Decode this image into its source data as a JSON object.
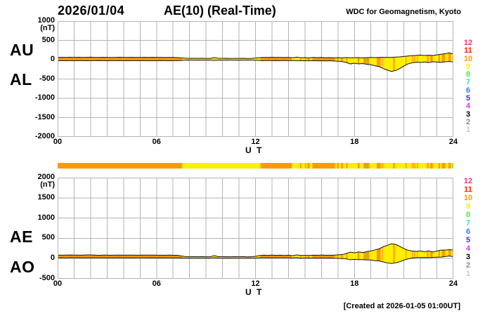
{
  "header": {
    "date": "2026/01/04",
    "title": "AE(10) (Real-Time)",
    "credit": "WDC for Geomagnetism, Kyoto"
  },
  "footer": {
    "created": "[Created at 2026-01-05 01:00UT]"
  },
  "colors": {
    "grid": "#b3b3b3",
    "outline": "#111111",
    "background": "#ffffff",
    "text": "#000000"
  },
  "station_colors": {
    "12": "#f2317e",
    "11": "#ff2000",
    "10": "#ff9900",
    "9": "#ffef00",
    "8": "#55e63c",
    "7": "#2ee6a8",
    "6": "#2e7ef0",
    "5": "#4a28e0",
    "4": "#dd33ee",
    "3": "#000000",
    "2": "#8c8c8c",
    "1": "#c8c8c8"
  },
  "legend_counts": [
    12,
    11,
    10,
    9,
    8,
    7,
    6,
    5,
    4,
    3,
    2,
    1
  ],
  "station_segments": [
    [
      0,
      7.55,
      10
    ],
    [
      7.55,
      12.3,
      9
    ],
    [
      12.3,
      14.2,
      10
    ],
    [
      14.2,
      14.7,
      9
    ],
    [
      14.7,
      14.78,
      10
    ],
    [
      14.78,
      15.0,
      9
    ],
    [
      15.0,
      15.08,
      10
    ],
    [
      15.08,
      15.15,
      9
    ],
    [
      15.15,
      15.28,
      10
    ],
    [
      15.28,
      15.45,
      9
    ],
    [
      15.45,
      16.75,
      10
    ],
    [
      16.75,
      16.82,
      10
    ],
    [
      16.82,
      16.95,
      9
    ],
    [
      16.95,
      17.05,
      10
    ],
    [
      17.05,
      17.18,
      9
    ],
    [
      17.18,
      17.3,
      10
    ],
    [
      17.3,
      17.5,
      9
    ],
    [
      17.5,
      17.58,
      10
    ],
    [
      17.58,
      18.2,
      9
    ],
    [
      18.2,
      18.3,
      10
    ],
    [
      18.3,
      18.55,
      9
    ],
    [
      18.55,
      18.65,
      10
    ],
    [
      18.65,
      18.72,
      8
    ],
    [
      18.72,
      18.9,
      10
    ],
    [
      18.9,
      19.35,
      9
    ],
    [
      19.35,
      19.6,
      10
    ],
    [
      19.6,
      19.68,
      9
    ],
    [
      19.68,
      19.73,
      10
    ],
    [
      19.73,
      20.35,
      9
    ],
    [
      20.35,
      20.45,
      10
    ],
    [
      20.45,
      21.1,
      9
    ],
    [
      21.1,
      21.16,
      10
    ],
    [
      21.16,
      21.5,
      9
    ],
    [
      21.5,
      21.56,
      10
    ],
    [
      21.56,
      21.62,
      9
    ],
    [
      21.62,
      21.68,
      10
    ],
    [
      21.68,
      21.8,
      9
    ],
    [
      21.8,
      21.86,
      10
    ],
    [
      21.86,
      22.4,
      9
    ],
    [
      22.4,
      22.5,
      10
    ],
    [
      22.5,
      22.6,
      9
    ],
    [
      22.6,
      22.75,
      10
    ],
    [
      22.75,
      23.1,
      9
    ],
    [
      23.1,
      23.2,
      10
    ],
    [
      23.2,
      23.3,
      9
    ],
    [
      23.3,
      23.5,
      10
    ],
    [
      23.5,
      23.7,
      9
    ],
    [
      23.7,
      23.85,
      10
    ],
    [
      23.85,
      23.95,
      9
    ],
    [
      23.95,
      24,
      8
    ]
  ],
  "chart_data": [
    {
      "type": "area",
      "panel": "AU-AL",
      "left_labels": [
        "AU",
        "AL"
      ],
      "unit_label": "(nT)",
      "xlabel": "U T",
      "x_start": 0,
      "x_end": 24,
      "x_step_hours": 0.25,
      "xticks_hours": [
        0,
        6,
        12,
        18,
        24
      ],
      "xtick_labels": [
        "00",
        "06",
        "12",
        "18",
        "24"
      ],
      "ylim": [
        -2000,
        1000
      ],
      "yticks": [
        1000,
        500,
        0,
        -500,
        -1000,
        -1500,
        -2000
      ],
      "grid": "on, 1 hour x 500 nT",
      "series": [
        {
          "name": "AU",
          "values": [
            60,
            62,
            58,
            64,
            60,
            63,
            58,
            62,
            65,
            60,
            58,
            62,
            60,
            57,
            60,
            63,
            58,
            60,
            62,
            58,
            60,
            62,
            59,
            61,
            58,
            60,
            57,
            60,
            58,
            55,
            45,
            38,
            35,
            36,
            34,
            37,
            35,
            33,
            55,
            36,
            34,
            36,
            33,
            35,
            34,
            36,
            33,
            35,
            40,
            55,
            60,
            58,
            62,
            58,
            60,
            57,
            60,
            50,
            65,
            50,
            55,
            48,
            58,
            52,
            60,
            50,
            55,
            48,
            52,
            48,
            55,
            50,
            50,
            55,
            48,
            52,
            58,
            55,
            60,
            62,
            58,
            60,
            68,
            72,
            85,
            95,
            105,
            112,
            118,
            110,
            115,
            108,
            125,
            140,
            155,
            175,
            150
          ]
        },
        {
          "name": "AL",
          "values": [
            -25,
            -22,
            -28,
            -24,
            -26,
            -22,
            -25,
            -28,
            -24,
            -26,
            -22,
            -25,
            -27,
            -24,
            -26,
            -22,
            -25,
            -27,
            -24,
            -26,
            -23,
            -25,
            -27,
            -24,
            -26,
            -23,
            -25,
            -27,
            -24,
            -26,
            -20,
            -12,
            -10,
            -14,
            -11,
            -13,
            -10,
            -12,
            -18,
            -11,
            -13,
            -10,
            -12,
            -14,
            -11,
            -13,
            -10,
            -12,
            -15,
            -20,
            -24,
            -21,
            -25,
            -22,
            -24,
            -21,
            -24,
            -20,
            -25,
            -28,
            -24,
            -30,
            -26,
            -30,
            -28,
            -32,
            -28,
            -35,
            -40,
            -50,
            -70,
            -110,
            -90,
            -110,
            -100,
            -120,
            -130,
            -160,
            -180,
            -230,
            -270,
            -305,
            -280,
            -230,
            -160,
            -110,
            -80,
            -65,
            -70,
            -60,
            -75,
            -55,
            -60,
            -70,
            -55,
            -45,
            -60
          ]
        }
      ]
    },
    {
      "type": "area",
      "panel": "AE-AO",
      "left_labels": [
        "AE",
        "AO"
      ],
      "unit_label": "(nT)",
      "xlabel": "U T",
      "x_start": 0,
      "x_end": 24,
      "x_step_hours": 0.25,
      "xticks_hours": [
        0,
        6,
        12,
        18,
        24
      ],
      "xtick_labels": [
        "00",
        "06",
        "12",
        "18",
        "24"
      ],
      "ylim": [
        -500,
        2000
      ],
      "yticks": [
        2000,
        1500,
        1000,
        500,
        0,
        -500
      ],
      "grid": "on, 1 hour x 500 nT",
      "series": [
        {
          "name": "AE",
          "values": [
            85,
            84,
            86,
            88,
            86,
            85,
            83,
            90,
            89,
            86,
            80,
            87,
            87,
            81,
            86,
            85,
            83,
            87,
            86,
            84,
            83,
            87,
            86,
            85,
            84,
            83,
            82,
            87,
            82,
            81,
            65,
            50,
            45,
            50,
            45,
            50,
            45,
            45,
            73,
            47,
            47,
            46,
            45,
            49,
            45,
            49,
            43,
            47,
            55,
            75,
            84,
            79,
            87,
            80,
            84,
            78,
            84,
            70,
            90,
            78,
            79,
            78,
            84,
            82,
            88,
            82,
            83,
            83,
            92,
            98,
            125,
            160,
            140,
            165,
            148,
            172,
            188,
            215,
            240,
            292,
            328,
            365,
            348,
            302,
            245,
            205,
            185,
            177,
            188,
            170,
            190,
            163,
            185,
            210,
            210,
            220,
            210
          ]
        },
        {
          "name": "AO",
          "values": [
            18,
            20,
            15,
            20,
            17,
            21,
            17,
            17,
            21,
            17,
            18,
            19,
            17,
            17,
            17,
            21,
            17,
            17,
            19,
            16,
            19,
            19,
            16,
            19,
            16,
            19,
            16,
            17,
            17,
            15,
            13,
            13,
            13,
            11,
            12,
            12,
            13,
            11,
            19,
            13,
            11,
            13,
            11,
            11,
            12,
            12,
            12,
            12,
            13,
            18,
            18,
            19,
            19,
            18,
            18,
            18,
            18,
            15,
            20,
            11,
            16,
            9,
            16,
            11,
            16,
            9,
            14,
            7,
            6,
            -1,
            -8,
            -30,
            -20,
            -28,
            -26,
            -34,
            -36,
            -53,
            -60,
            -84,
            -106,
            -123,
            -106,
            -79,
            -38,
            -8,
            13,
            24,
            24,
            25,
            20,
            27,
            33,
            35,
            50,
            65,
            45
          ]
        }
      ]
    }
  ]
}
